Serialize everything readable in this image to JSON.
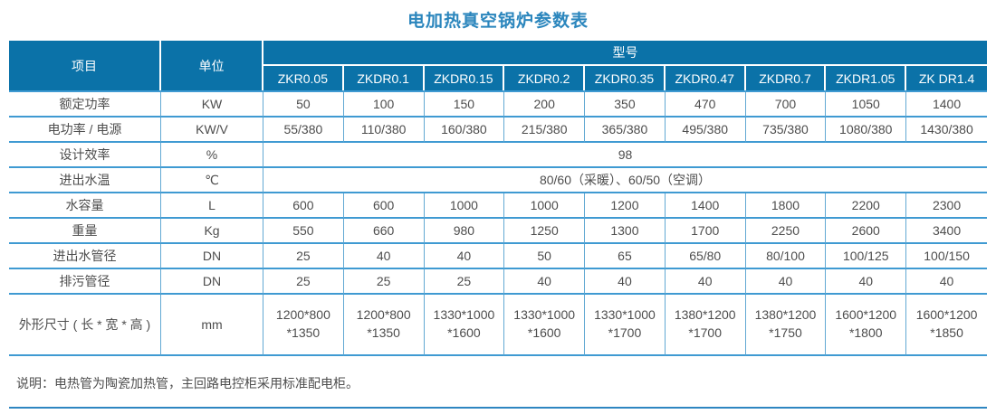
{
  "title": "电加热真空锅炉参数表",
  "note": "说明：电热管为陶瓷加热管，主回路电控柜采用标准配电柜。",
  "colors": {
    "header_bg": "#0b72a8",
    "header_text": "#ffffff",
    "grid_line": "#3f9ad2",
    "title_text": "#2b86bd",
    "body_text": "#4d4d4d",
    "bottom_rule": "#2e86c1"
  },
  "table": {
    "header": {
      "item_label": "项目",
      "unit_label": "单位",
      "model_group_label": "型号",
      "models": [
        "ZKR0.05",
        "ZKDR0.1",
        "ZKDR0.15",
        "ZKDR0.2",
        "ZKDR0.35",
        "ZKDR0.47",
        "ZKDR0.7",
        "ZKDR1.05",
        "ZK DR1.4"
      ]
    },
    "rows": [
      {
        "item": "额定功率",
        "unit": "KW",
        "values": [
          "50",
          "100",
          "150",
          "200",
          "350",
          "470",
          "700",
          "1050",
          "1400"
        ]
      },
      {
        "item": "电功率 / 电源",
        "unit": "KW/V",
        "values": [
          "55/380",
          "110/380",
          "160/380",
          "215/380",
          "365/380",
          "495/380",
          "735/380",
          "1080/380",
          "1430/380"
        ]
      },
      {
        "item": "设计效率",
        "unit": "%",
        "span_value": "98"
      },
      {
        "item": "进出水温",
        "unit": "℃",
        "span_value": "80/60（采暖）、60/50（空调）"
      },
      {
        "item": "水容量",
        "unit": "L",
        "values": [
          "600",
          "600",
          "1000",
          "1000",
          "1200",
          "1400",
          "1800",
          "2200",
          "2300"
        ]
      },
      {
        "item": "重量",
        "unit": "Kg",
        "values": [
          "550",
          "660",
          "980",
          "1250",
          "1300",
          "1700",
          "2250",
          "2600",
          "3400"
        ]
      },
      {
        "item": "进出水管径",
        "unit": "DN",
        "values": [
          "25",
          "40",
          "40",
          "50",
          "65",
          "65/80",
          "80/100",
          "100/125",
          "100/150"
        ]
      },
      {
        "item": "排污管径",
        "unit": "DN",
        "values": [
          "25",
          "25",
          "25",
          "40",
          "40",
          "40",
          "40",
          "40",
          "40"
        ]
      },
      {
        "item": "外形尺寸 ( 长 * 宽 * 高 )",
        "unit": "mm",
        "values": [
          "1200*800\n*1350",
          "1200*800\n*1350",
          "1330*1000\n*1600",
          "1330*1000\n*1600",
          "1330*1000\n*1700",
          "1380*1200\n*1700",
          "1380*1200\n*1750",
          "1600*1200\n*1800",
          "1600*1200\n*1850"
        ]
      }
    ]
  }
}
